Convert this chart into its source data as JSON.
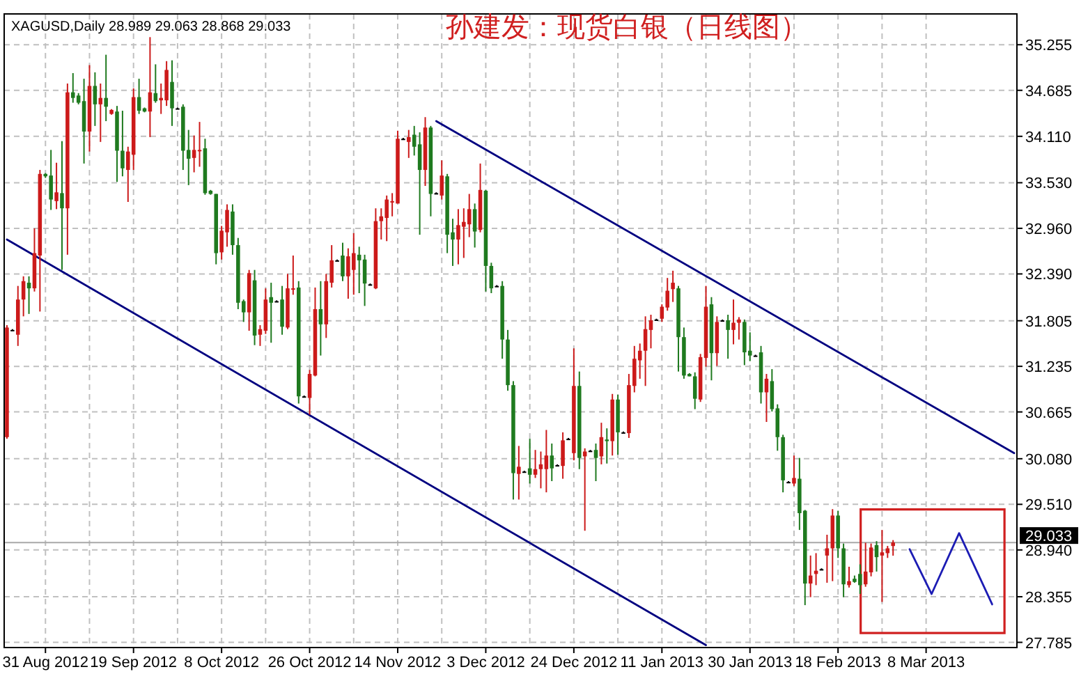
{
  "chart_data": {
    "type": "candlestick",
    "title": "孙建发：现货白银（日线图）",
    "annotations": [
      "XAGUSD,Daily  28.989 29.063 28.868 29.033"
    ],
    "categories": [
      null,
      null,
      null,
      null,
      null,
      null,
      null,
      "31 Aug 2012",
      null,
      null,
      null,
      null,
      null,
      null,
      null,
      null,
      null,
      null,
      null,
      null,
      null,
      null,
      null,
      "19 Sep 2012",
      null,
      null,
      null,
      null,
      null,
      null,
      null,
      null,
      null,
      null,
      null,
      null,
      null,
      null,
      null,
      "8 Oct 2012",
      null,
      null,
      null,
      null,
      null,
      null,
      null,
      null,
      null,
      null,
      null,
      null,
      null,
      null,
      null,
      "26 Oct 2012",
      null,
      null,
      null,
      null,
      null,
      null,
      null,
      null,
      null,
      null,
      null,
      null,
      null,
      null,
      null,
      "14 Nov 2012",
      null,
      null,
      null,
      null,
      null,
      null,
      null,
      null,
      null,
      null,
      null,
      null,
      null,
      null,
      null,
      "3 Dec 2012",
      null,
      null,
      null,
      null,
      null,
      null,
      null,
      null,
      null,
      null,
      null,
      null,
      null,
      null,
      null,
      "24 Dec 2012",
      null,
      null,
      null,
      null,
      null,
      null,
      null,
      null,
      null,
      null,
      null,
      null,
      null,
      null,
      null,
      "11 Jan 2013",
      null,
      null,
      null,
      null,
      null,
      null,
      null,
      null,
      null,
      null,
      null,
      null,
      null,
      null,
      null,
      "30 Jan 2013",
      null,
      null,
      null,
      null,
      null,
      null,
      null,
      null,
      null,
      null,
      null,
      null,
      null,
      null,
      null,
      "18 Feb 2013",
      null,
      null,
      null,
      null,
      null,
      null,
      null,
      null,
      null,
      null,
      null,
      null,
      null,
      null,
      null,
      "8 Mar 2013",
      null,
      null,
      null,
      null,
      null,
      null,
      null,
      null,
      null,
      null,
      null,
      null,
      null,
      null,
      null,
      null
    ],
    "ohlc": [
      [
        30.35,
        31.75,
        30.33,
        31.72
      ],
      [
        31.69,
        31.7,
        31.68,
        31.69
      ],
      [
        31.63,
        32.24,
        31.49,
        32.07
      ],
      [
        32.07,
        32.36,
        31.86,
        32.3
      ],
      [
        32.28,
        32.36,
        31.89,
        32.21
      ],
      [
        32.21,
        32.96,
        32.17,
        32.65
      ],
      [
        32.62,
        33.69,
        31.92,
        33.64
      ],
      [
        33.64,
        33.65,
        33.59,
        33.61
      ],
      [
        33.62,
        33.94,
        33.19,
        33.32
      ],
      [
        33.3,
        33.78,
        33.2,
        33.41
      ],
      [
        33.4,
        34.05,
        32.44,
        33.21
      ],
      [
        33.21,
        34.77,
        32.63,
        34.66
      ],
      [
        34.66,
        34.9,
        34.53,
        34.59
      ],
      [
        34.62,
        34.65,
        34.51,
        34.53
      ],
      [
        34.55,
        34.83,
        33.77,
        34.17
      ],
      [
        34.17,
        35.0,
        33.92,
        34.74
      ],
      [
        34.74,
        34.91,
        34.24,
        34.51
      ],
      [
        34.51,
        34.77,
        34.04,
        34.59
      ],
      [
        34.59,
        35.13,
        34.3,
        34.48
      ],
      [
        34.39,
        34.45,
        34.38,
        34.44
      ],
      [
        34.42,
        34.49,
        33.54,
        33.93
      ],
      [
        33.93,
        34.43,
        33.61,
        33.71
      ],
      [
        33.69,
        33.98,
        33.29,
        33.92
      ],
      [
        33.88,
        34.71,
        33.69,
        34.6
      ],
      [
        34.6,
        34.83,
        34.39,
        34.43
      ],
      [
        34.46,
        34.47,
        34.41,
        34.42
      ],
      [
        34.42,
        35.35,
        34.1,
        34.66
      ],
      [
        34.65,
        35.01,
        34.53,
        34.55
      ],
      [
        34.56,
        34.77,
        34.39,
        34.59
      ],
      [
        34.56,
        35.05,
        34.49,
        34.94
      ],
      [
        34.79,
        35.06,
        34.24,
        34.46
      ],
      [
        34.46,
        34.47,
        34.45,
        34.46
      ],
      [
        34.48,
        34.51,
        33.69,
        33.93
      ],
      [
        33.94,
        34.19,
        33.5,
        33.83
      ],
      [
        33.84,
        34.12,
        33.66,
        33.94
      ],
      [
        33.93,
        34.29,
        33.73,
        33.94
      ],
      [
        33.96,
        34.08,
        33.38,
        33.4
      ],
      [
        33.43,
        33.44,
        33.38,
        33.39
      ],
      [
        33.39,
        33.39,
        32.51,
        32.65
      ],
      [
        32.66,
        32.99,
        32.57,
        32.93
      ],
      [
        32.91,
        33.26,
        32.73,
        33.19
      ],
      [
        33.17,
        33.26,
        32.63,
        32.75
      ],
      [
        32.75,
        32.84,
        31.95,
        32.03
      ],
      [
        32.05,
        32.07,
        31.79,
        31.91
      ],
      [
        31.91,
        32.44,
        31.68,
        32.4
      ],
      [
        32.31,
        32.44,
        31.5,
        31.62
      ],
      [
        31.63,
        31.75,
        31.49,
        31.7
      ],
      [
        31.68,
        32.21,
        31.64,
        32.07
      ],
      [
        32.1,
        32.28,
        31.53,
        32.03
      ],
      [
        32.05,
        32.06,
        32.04,
        32.05
      ],
      [
        32.07,
        32.24,
        31.63,
        31.73
      ],
      [
        31.72,
        32.39,
        31.7,
        32.21
      ],
      [
        32.2,
        32.62,
        32.13,
        32.21
      ],
      [
        32.22,
        32.3,
        30.77,
        30.86
      ],
      [
        30.86,
        30.87,
        30.85,
        30.86
      ],
      [
        30.84,
        31.19,
        30.63,
        31.14
      ],
      [
        31.12,
        32.22,
        31.11,
        31.95
      ],
      [
        31.95,
        32.3,
        31.37,
        31.76
      ],
      [
        31.76,
        32.39,
        31.59,
        32.3
      ],
      [
        32.28,
        32.75,
        32.22,
        32.56
      ],
      [
        32.56,
        32.57,
        32.55,
        32.56
      ],
      [
        32.62,
        32.78,
        32.3,
        32.36
      ],
      [
        32.36,
        32.71,
        32.08,
        32.61
      ],
      [
        32.44,
        32.9,
        32.13,
        32.65
      ],
      [
        32.63,
        32.73,
        32.15,
        32.56
      ],
      [
        32.57,
        32.63,
        31.99,
        32.27
      ],
      [
        32.26,
        32.27,
        32.25,
        32.26
      ],
      [
        32.21,
        33.21,
        32.2,
        33.05
      ],
      [
        33.05,
        33.21,
        32.82,
        33.11
      ],
      [
        33.09,
        33.37,
        32.8,
        33.32
      ],
      [
        33.29,
        33.4,
        33.11,
        33.3
      ],
      [
        33.27,
        34.18,
        33.27,
        34.08
      ],
      [
        34.08,
        34.09,
        34.07,
        34.08
      ],
      [
        34.04,
        34.19,
        33.84,
        34.1
      ],
      [
        34.13,
        34.24,
        33.87,
        33.98
      ],
      [
        34.01,
        34.16,
        32.88,
        33.69
      ],
      [
        33.69,
        34.35,
        33.49,
        34.22
      ],
      [
        34.22,
        34.24,
        33.11,
        33.39
      ],
      [
        33.4,
        33.41,
        33.39,
        33.4
      ],
      [
        33.37,
        33.81,
        33.32,
        33.62
      ],
      [
        33.61,
        33.64,
        32.65,
        32.88
      ],
      [
        32.91,
        33.08,
        32.49,
        32.82
      ],
      [
        32.82,
        33.2,
        32.51,
        33.0
      ],
      [
        32.98,
        33.21,
        32.59,
        33.04
      ],
      [
        33.01,
        33.39,
        32.85,
        33.2
      ],
      [
        33.2,
        33.27,
        32.72,
        32.92
      ],
      [
        32.94,
        33.77,
        32.91,
        33.44
      ],
      [
        33.43,
        33.44,
        32.17,
        32.49
      ],
      [
        32.49,
        32.53,
        32.15,
        32.21
      ],
      [
        32.24,
        32.25,
        32.23,
        32.24
      ],
      [
        32.24,
        32.3,
        31.33,
        31.57
      ],
      [
        31.57,
        31.69,
        30.93,
        31.0
      ],
      [
        31.0,
        31.05,
        29.57,
        29.9
      ],
      [
        29.89,
        30.24,
        29.57,
        29.98
      ],
      [
        29.92,
        29.93,
        29.91,
        29.92
      ],
      [
        29.96,
        30.33,
        29.77,
        29.88
      ],
      [
        29.88,
        30.19,
        29.84,
        29.95
      ],
      [
        29.95,
        30.17,
        29.71,
        30.01
      ],
      [
        29.95,
        30.44,
        29.66,
        30.12
      ],
      [
        30.12,
        30.27,
        29.8,
        29.96
      ],
      [
        30.0,
        30.01,
        29.99,
        30.0
      ],
      [
        29.99,
        30.41,
        29.83,
        30.31
      ],
      [
        30.33,
        30.34,
        30.32,
        30.33
      ],
      [
        30.15,
        31.46,
        30.06,
        30.99
      ],
      [
        30.99,
        31.17,
        29.95,
        30.09
      ],
      [
        30.11,
        30.21,
        29.18,
        30.17
      ],
      [
        30.18,
        30.19,
        30.17,
        30.18
      ],
      [
        30.19,
        30.27,
        29.8,
        30.09
      ],
      [
        30.11,
        30.53,
        30.01,
        30.35
      ],
      [
        30.32,
        30.46,
        30.02,
        30.3
      ],
      [
        30.3,
        30.89,
        30.12,
        30.82
      ],
      [
        30.82,
        30.88,
        30.13,
        30.41
      ],
      [
        30.41,
        30.42,
        30.4,
        30.41
      ],
      [
        30.4,
        31.14,
        30.34,
        31.0
      ],
      [
        30.99,
        31.49,
        30.91,
        31.33
      ],
      [
        31.31,
        31.52,
        31.08,
        31.43
      ],
      [
        31.43,
        31.86,
        30.99,
        31.7
      ],
      [
        31.69,
        31.88,
        31.46,
        31.81
      ],
      [
        31.82,
        31.83,
        31.81,
        31.82
      ],
      [
        31.83,
        32.01,
        31.79,
        31.98
      ],
      [
        31.97,
        32.34,
        31.93,
        32.18
      ],
      [
        32.2,
        32.43,
        32.04,
        32.28
      ],
      [
        32.21,
        32.24,
        31.17,
        31.6
      ],
      [
        31.6,
        31.72,
        31.08,
        31.12
      ],
      [
        31.14,
        31.15,
        31.11,
        31.11
      ],
      [
        31.11,
        31.16,
        30.7,
        30.83
      ],
      [
        30.82,
        31.39,
        30.79,
        31.35
      ],
      [
        31.34,
        32.24,
        31.23,
        31.98
      ],
      [
        32.01,
        32.1,
        31.06,
        31.4
      ],
      [
        31.4,
        31.86,
        31.24,
        31.79
      ],
      [
        31.81,
        31.82,
        31.8,
        31.81
      ],
      [
        31.81,
        31.88,
        31.33,
        31.69
      ],
      [
        31.69,
        32.07,
        31.51,
        31.78
      ],
      [
        31.78,
        31.85,
        31.57,
        31.82
      ],
      [
        31.79,
        31.82,
        31.25,
        31.41
      ],
      [
        31.43,
        31.66,
        31.3,
        31.37
      ],
      [
        31.37,
        31.38,
        31.36,
        31.37
      ],
      [
        31.41,
        31.49,
        30.77,
        30.91
      ],
      [
        30.91,
        31.14,
        30.54,
        31.08
      ],
      [
        31.05,
        31.2,
        30.67,
        30.7
      ],
      [
        30.71,
        30.76,
        30.18,
        30.35
      ],
      [
        30.35,
        30.38,
        29.66,
        29.81
      ],
      [
        29.79,
        29.8,
        29.78,
        29.79
      ],
      [
        29.77,
        30.12,
        29.74,
        29.84
      ],
      [
        29.83,
        30.09,
        29.19,
        29.4
      ],
      [
        29.43,
        29.44,
        28.25,
        28.52
      ],
      [
        28.52,
        28.87,
        28.35,
        28.62
      ],
      [
        28.64,
        28.9,
        28.5,
        28.68
      ],
      [
        28.7,
        28.71,
        28.69,
        28.7
      ],
      [
        28.87,
        29.13,
        28.53,
        28.96
      ],
      [
        28.96,
        29.45,
        28.55,
        29.37
      ],
      [
        29.37,
        29.43,
        28.84,
        28.96
      ],
      [
        28.96,
        29.02,
        28.35,
        28.51
      ],
      [
        28.5,
        28.73,
        28.47,
        28.55
      ],
      [
        28.58,
        28.62,
        28.53,
        28.54
      ],
      [
        28.64,
        28.76,
        28.39,
        28.5
      ],
      [
        28.51,
        29.03,
        28.48,
        28.67
      ],
      [
        28.66,
        29.02,
        28.61,
        28.97
      ],
      [
        29.0,
        29.05,
        28.67,
        28.85
      ],
      [
        28.87,
        29.19,
        28.29,
        28.91
      ],
      [
        28.9,
        28.99,
        28.84,
        28.96
      ],
      [
        28.989,
        29.063,
        28.868,
        29.033
      ],
      null,
      null,
      null,
      null,
      null,
      null,
      null,
      null,
      null,
      null,
      null,
      null,
      null,
      null,
      null,
      null,
      null,
      null,
      null,
      null,
      null,
      null
    ],
    "series": [
      {
        "type": "line",
        "color": "#000080",
        "values": [
          null,
          null,
          null,
          null,
          null,
          null,
          null,
          null,
          null,
          null,
          null,
          null,
          null,
          null,
          null,
          null,
          null,
          null,
          null,
          null,
          null,
          null,
          null,
          null,
          null,
          null,
          null,
          null,
          null,
          null,
          null,
          null,
          null,
          null,
          null,
          null,
          null,
          null,
          null,
          null,
          null,
          null,
          null,
          null,
          null,
          null,
          null,
          null,
          null,
          null,
          null,
          null,
          null,
          null,
          null,
          null,
          null,
          null,
          null,
          null,
          null,
          null,
          null,
          null,
          null,
          null,
          null,
          null,
          null,
          null,
          null,
          null,
          null,
          null,
          null,
          null,
          null,
          null,
          34.3,
          null,
          null,
          null,
          null,
          null,
          null,
          null,
          null,
          null,
          null,
          null,
          null,
          null,
          null,
          null,
          null,
          null,
          null,
          null,
          null,
          null,
          null,
          null,
          null,
          null,
          null,
          null,
          null,
          null,
          null,
          null,
          null,
          null,
          null,
          null,
          null,
          null,
          null,
          null,
          null,
          null,
          null,
          null,
          null,
          null,
          null,
          null,
          null,
          null,
          null,
          null,
          null,
          null,
          null,
          null,
          null,
          null,
          null,
          null,
          null,
          null,
          null,
          null,
          null,
          null,
          null,
          null,
          null,
          null,
          null,
          null,
          null,
          null,
          null,
          null,
          null,
          null,
          null,
          null,
          null,
          null,
          null,
          null,
          null,
          null,
          null,
          null,
          null,
          null,
          null,
          null,
          null,
          null,
          null,
          null,
          null,
          null,
          null,
          null,
          null,
          null,
          null,
          null,
          null,
          30.15
        ]
      },
      {
        "type": "line",
        "color": "#000080",
        "values": [
          32.82,
          null,
          null,
          null,
          null,
          null,
          null,
          null,
          null,
          null,
          null,
          null,
          null,
          null,
          null,
          null,
          null,
          null,
          null,
          null,
          null,
          null,
          null,
          null,
          null,
          null,
          null,
          null,
          null,
          null,
          null,
          null,
          null,
          null,
          null,
          null,
          null,
          null,
          null,
          null,
          null,
          null,
          null,
          null,
          null,
          null,
          null,
          null,
          null,
          null,
          null,
          null,
          null,
          null,
          null,
          null,
          null,
          null,
          null,
          null,
          null,
          null,
          null,
          null,
          null,
          null,
          null,
          null,
          null,
          null,
          null,
          null,
          null,
          null,
          null,
          null,
          null,
          null,
          null,
          null,
          null,
          null,
          null,
          null,
          null,
          null,
          null,
          null,
          null,
          null,
          null,
          null,
          null,
          null,
          null,
          null,
          null,
          null,
          null,
          null,
          null,
          null,
          null,
          null,
          null,
          null,
          null,
          null,
          null,
          null,
          null,
          null,
          null,
          null,
          null,
          null,
          null,
          null,
          null,
          null,
          null,
          null,
          null,
          null,
          null,
          null,
          null,
          27.75,
          null,
          null,
          null,
          null,
          null,
          null,
          null,
          null,
          null,
          null,
          null,
          null,
          null,
          null,
          null,
          null,
          null,
          null,
          null,
          null,
          null,
          null,
          null,
          null,
          null,
          null,
          null,
          null,
          null,
          null,
          null,
          null,
          null,
          null,
          null,
          null,
          null,
          null,
          null,
          null,
          null,
          null,
          null,
          null,
          null,
          null,
          null,
          null,
          null,
          null,
          null,
          null,
          null,
          null,
          null,
          null
        ]
      },
      {
        "type": "line",
        "color": "#1c1cb4",
        "values": [
          null,
          null,
          null,
          null,
          null,
          null,
          null,
          null,
          null,
          null,
          null,
          null,
          null,
          null,
          null,
          null,
          null,
          null,
          null,
          null,
          null,
          null,
          null,
          null,
          null,
          null,
          null,
          null,
          null,
          null,
          null,
          null,
          null,
          null,
          null,
          null,
          null,
          null,
          null,
          null,
          null,
          null,
          null,
          null,
          null,
          null,
          null,
          null,
          null,
          null,
          null,
          null,
          null,
          null,
          null,
          null,
          null,
          null,
          null,
          null,
          null,
          null,
          null,
          null,
          null,
          null,
          null,
          null,
          null,
          null,
          null,
          null,
          null,
          null,
          null,
          null,
          null,
          null,
          null,
          null,
          null,
          null,
          null,
          null,
          null,
          null,
          null,
          null,
          null,
          null,
          null,
          null,
          null,
          null,
          null,
          null,
          null,
          null,
          null,
          null,
          null,
          null,
          null,
          null,
          null,
          null,
          null,
          null,
          null,
          null,
          null,
          null,
          null,
          null,
          null,
          null,
          null,
          null,
          null,
          null,
          null,
          null,
          null,
          null,
          null,
          null,
          null,
          null,
          null,
          null,
          null,
          null,
          null,
          null,
          null,
          null,
          null,
          null,
          null,
          null,
          null,
          null,
          null,
          null,
          null,
          null,
          null,
          null,
          null,
          null,
          null,
          null,
          null,
          null,
          null,
          null,
          null,
          null,
          null,
          null,
          null,
          null,
          null,
          null,
          28.95,
          null,
          null,
          null,
          28.39,
          null,
          null,
          null,
          null,
          29.15,
          null,
          null,
          null,
          null,
          null,
          28.26,
          null,
          null,
          null,
          null
        ]
      }
    ],
    "ylim": [
      27.72,
      35.64
    ],
    "yticks": [
      35.255,
      34.685,
      {
        "value": 34.11,
        "label": "34.110"
      },
      {
        "value": 33.53,
        "label": "33.530"
      },
      {
        "value": 32.96,
        "label": "32.960"
      },
      {
        "value": 32.39,
        "label": "32.390"
      },
      31.805,
      31.235,
      30.665,
      {
        "value": 30.08,
        "label": "30.080"
      },
      {
        "value": 29.51,
        "label": "29.510"
      },
      {
        "value": 28.94,
        "label": "28.940"
      },
      28.355,
      27.785
    ],
    "grid": true,
    "ref_lines": [
      {
        "axis": "y",
        "value": 29.033,
        "label": "29.033",
        "color": "#a8a8a8"
      }
    ]
  }
}
